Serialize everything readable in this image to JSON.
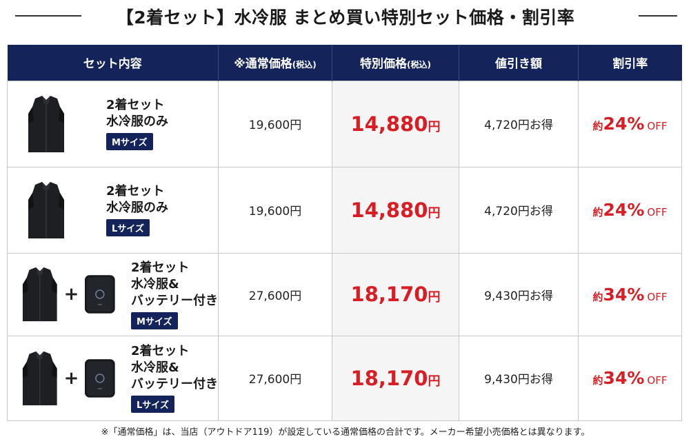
{
  "title": "【2着セット】水冷服 まとめ買い特別セット価格・割引率",
  "headers": {
    "set_contents": "セット内容",
    "regular_price": "※通常価格",
    "regular_price_tax": "(税込)",
    "special_price": "特別価格",
    "special_price_tax": "(税込)",
    "discount_amount": "値引き額",
    "discount_rate": "割引率"
  },
  "rows": [
    {
      "line1": "2着セット",
      "line2": "水冷服のみ",
      "line3": "",
      "size": "Mサイズ",
      "regular": "19,600円",
      "special_value": "14,880",
      "special_yen": "円",
      "discount": "4,720円お得",
      "rate_prefix": "約",
      "rate_value": "24%",
      "rate_suffix": "OFF"
    },
    {
      "line1": "2着セット",
      "line2": "水冷服のみ",
      "line3": "",
      "size": "Lサイズ",
      "regular": "19,600円",
      "special_value": "14,880",
      "special_yen": "円",
      "discount": "4,720円お得",
      "rate_prefix": "約",
      "rate_value": "24%",
      "rate_suffix": "OFF"
    },
    {
      "line1": "2着セット",
      "line2": "水冷服&",
      "line3": "バッテリー付き",
      "size": "Mサイズ",
      "regular": "27,600円",
      "special_value": "18,170",
      "special_yen": "円",
      "discount": "9,430円お得",
      "rate_prefix": "約",
      "rate_value": "34%",
      "rate_suffix": "OFF"
    },
    {
      "line1": "2着セット",
      "line2": "水冷服&",
      "line3": "バッテリー付き",
      "size": "Lサイズ",
      "regular": "27,600円",
      "special_value": "18,170",
      "special_yen": "円",
      "discount": "9,430円お得",
      "rate_prefix": "約",
      "rate_value": "34%",
      "rate_suffix": "OFF"
    }
  ],
  "plus_symbol": "+",
  "footnote": "※「通常価格」は、当店（アウトドア119）が設定している通常価格の合計です。メーカー希望小売価格とは異なります。",
  "colors": {
    "header_bg": "#14245a",
    "price_red": "#d81e24",
    "special_cell_bg": "#f5f5f6"
  },
  "icons": {
    "vest": "vest-image",
    "battery": "battery-image"
  }
}
